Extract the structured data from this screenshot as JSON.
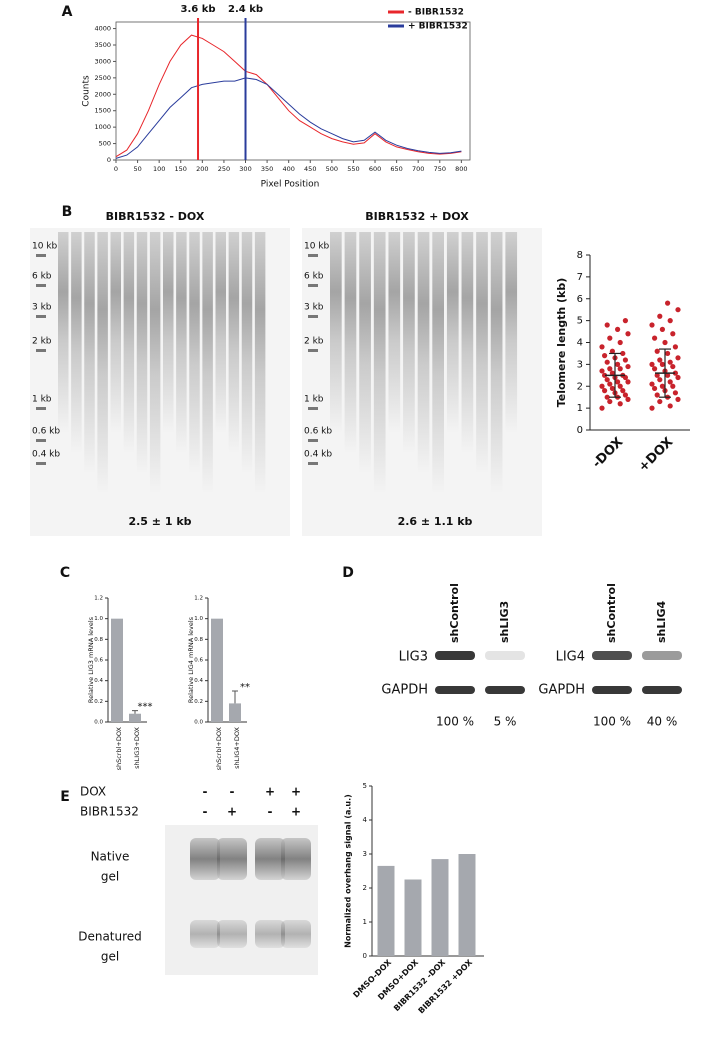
{
  "figure": {
    "panel_labels": [
      "A",
      "B",
      "C",
      "D",
      "E"
    ],
    "gel_b": {
      "titles": [
        "BIBR1532 - DOX",
        "BIBR1532 + DOX"
      ],
      "ladder": [
        "10 kb",
        "6 kb",
        "3 kb",
        "2 kb",
        "1 kb",
        "0.6 kb",
        "0.4 kb"
      ],
      "summaries": [
        "2.5 ± 1 kb",
        "2.6 ± 1.1 kb"
      ]
    },
    "western_d": [
      {
        "lanes": [
          "shControl",
          "shLIG3"
        ],
        "rows": [
          "LIG3",
          "GAPDH"
        ],
        "levels": [
          "100 %",
          "5 %"
        ]
      },
      {
        "lanes": [
          "shControl",
          "shLIG4"
        ],
        "rows": [
          "LIG4",
          "GAPDH"
        ],
        "levels": [
          "100 %",
          "40 %"
        ]
      }
    ],
    "gel_e": {
      "conditions": [
        {
          "name": "DOX",
          "signs": [
            "-",
            "-",
            "+",
            "+"
          ]
        },
        {
          "name": "BIBR1532",
          "signs": [
            "-",
            "+",
            "-",
            "+"
          ]
        }
      ],
      "rows": [
        [
          "Native",
          "gel"
        ],
        [
          "Denatured",
          "gel"
        ]
      ]
    }
  },
  "chart_data": [
    {
      "type": "line",
      "x_label": "Pixel Position",
      "y_label": "Counts",
      "x": [
        0,
        25,
        50,
        75,
        100,
        125,
        150,
        175,
        200,
        225,
        250,
        275,
        300,
        325,
        350,
        375,
        400,
        425,
        450,
        475,
        500,
        525,
        550,
        575,
        600,
        625,
        650,
        675,
        700,
        725,
        750,
        775,
        800
      ],
      "series": [
        {
          "name": "-  BIBR1532",
          "color": "#e8262b",
          "values": [
            100,
            300,
            800,
            1500,
            2300,
            3000,
            3500,
            3800,
            3700,
            3500,
            3300,
            3000,
            2700,
            2600,
            2300,
            1900,
            1500,
            1200,
            1000,
            800,
            650,
            550,
            480,
            520,
            800,
            550,
            400,
            320,
            250,
            200,
            180,
            200,
            250
          ]
        },
        {
          "name": "+ BIBR1532",
          "color": "#2a3c9c",
          "values": [
            50,
            150,
            400,
            800,
            1200,
            1600,
            1900,
            2200,
            2300,
            2350,
            2400,
            2400,
            2500,
            2450,
            2300,
            2000,
            1700,
            1400,
            1150,
            950,
            800,
            650,
            550,
            600,
            850,
            600,
            450,
            350,
            280,
            230,
            200,
            220,
            270
          ]
        }
      ],
      "markers": [
        {
          "x": 190,
          "label": "3.6 kb",
          "color": "#e8262b"
        },
        {
          "x": 300,
          "label": "2.4 kb",
          "color": "#2a3c9c"
        }
      ],
      "xlim": [
        0,
        820
      ],
      "xticks": [
        0,
        50,
        100,
        150,
        200,
        250,
        300,
        350,
        400,
        450,
        500,
        550,
        600,
        650,
        700,
        750,
        800
      ],
      "ylim": [
        0,
        4200
      ],
      "yticks": [
        0,
        500,
        1000,
        1500,
        2000,
        2500,
        3000,
        3500,
        4000
      ]
    },
    {
      "type": "strip",
      "y_label": "Telomere length (kb)",
      "categories": [
        "-DOX",
        "+DOX"
      ],
      "color": "#c8232c",
      "values": [
        [
          1.0,
          1.2,
          1.3,
          1.4,
          1.5,
          1.5,
          1.6,
          1.7,
          1.8,
          1.8,
          1.9,
          2.0,
          2.0,
          2.1,
          2.2,
          2.2,
          2.3,
          2.4,
          2.4,
          2.5,
          2.5,
          2.6,
          2.7,
          2.8,
          2.8,
          2.9,
          3.0,
          3.1,
          3.2,
          3.3,
          3.4,
          3.5,
          3.6,
          3.8,
          4.0,
          4.2,
          4.4,
          4.6,
          4.8,
          5.0
        ],
        [
          1.0,
          1.1,
          1.3,
          1.4,
          1.5,
          1.6,
          1.7,
          1.8,
          1.9,
          2.0,
          2.0,
          2.1,
          2.2,
          2.3,
          2.4,
          2.5,
          2.5,
          2.6,
          2.7,
          2.8,
          2.9,
          3.0,
          3.0,
          3.1,
          3.2,
          3.3,
          3.5,
          3.6,
          3.8,
          4.0,
          4.2,
          4.4,
          4.6,
          4.8,
          5.0,
          5.2,
          5.5,
          5.8
        ]
      ],
      "means": [
        2.5,
        2.6
      ],
      "errors": [
        1,
        1.1
      ],
      "ylim": [
        0,
        8
      ],
      "yticks": [
        0,
        1,
        2,
        3,
        4,
        5,
        6,
        7,
        8
      ]
    },
    {
      "type": "bar",
      "y_label": "Relative LIG3 mRNA levels",
      "categories": [
        "shScrbl+DOX",
        "shLIG3+DOX"
      ],
      "color": "#a5a8ae",
      "values": [
        1.0,
        0.08
      ],
      "errors": [
        0,
        0.03
      ],
      "annotation": "***",
      "ylim": [
        0,
        1.2
      ],
      "yticks": [
        {
          "value": 0,
          "label": "0.0"
        },
        {
          "value": 0.2,
          "label": "0.2"
        },
        {
          "value": 0.4,
          "label": "0.4"
        },
        {
          "value": 0.6,
          "label": "0.6"
        },
        {
          "value": 0.8,
          "label": "0.8"
        },
        {
          "value": 1,
          "label": "1.0"
        },
        {
          "value": 1.2,
          "label": "1.2"
        }
      ]
    },
    {
      "type": "bar",
      "y_label": "Relative LIG4 mRNA levels",
      "categories": [
        "shScrbl+DOX",
        "shLIG4+DOX"
      ],
      "color": "#a5a8ae",
      "values": [
        1.0,
        0.18
      ],
      "errors": [
        0,
        0.12
      ],
      "annotation": "**",
      "ylim": [
        0,
        1.2
      ],
      "yticks": [
        {
          "value": 0,
          "label": "0.0"
        },
        {
          "value": 0.2,
          "label": "0.2"
        },
        {
          "value": 0.4,
          "label": "0.4"
        },
        {
          "value": 0.6,
          "label": "0.6"
        },
        {
          "value": 0.8,
          "label": "0.8"
        },
        {
          "value": 1,
          "label": "1.0"
        },
        {
          "value": 1.2,
          "label": "1.2"
        }
      ]
    },
    {
      "type": "bar",
      "y_label": "Normalized overhang signal (a.u.)",
      "categories": [
        "DMSO-DOX",
        "DMSO+DOX",
        "BIBR1532 -DOX",
        "BIBR1532 +DOX"
      ],
      "color": "#a5a8ae",
      "values": [
        2.65,
        2.25,
        2.85,
        3.0
      ],
      "ylim": [
        0,
        5
      ],
      "yticks": [
        0,
        1,
        2,
        3,
        4,
        5
      ]
    }
  ]
}
